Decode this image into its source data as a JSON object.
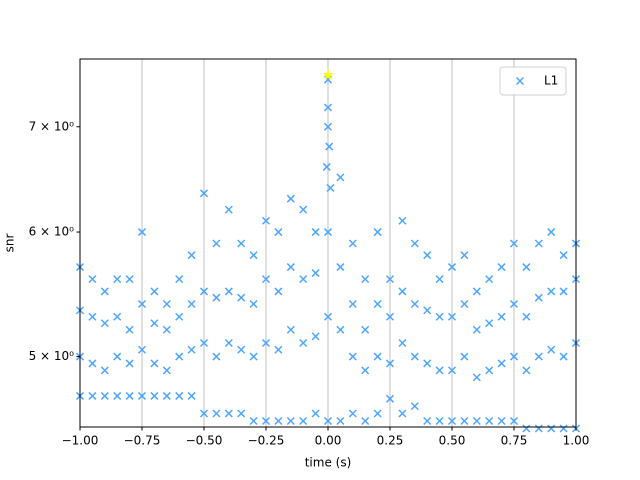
{
  "chart_data": {
    "type": "scatter",
    "xlabel": "time (s)",
    "ylabel": "snr",
    "xlim": [
      -1,
      1
    ],
    "ylim": [
      4.51,
      7.73
    ],
    "yscale": "log",
    "xticks": [
      {
        "value": -1,
        "label": "−1.00"
      },
      {
        "value": -0.75,
        "label": "−0.75"
      },
      {
        "value": -0.5,
        "label": "−0.50"
      },
      {
        "value": -0.25,
        "label": "−0.25"
      },
      {
        "value": 0,
        "label": "0.00"
      },
      {
        "value": 0.25,
        "label": "0.25"
      },
      {
        "value": 0.5,
        "label": "0.50"
      },
      {
        "value": 0.75,
        "label": "0.75"
      },
      {
        "value": 1,
        "label": "1.00"
      }
    ],
    "yticks": [
      {
        "value": 5,
        "label": "5 × 10⁰"
      },
      {
        "value": 6,
        "label": "6 × 10⁰"
      },
      {
        "value": 7,
        "label": "7 × 10⁰"
      }
    ],
    "xgrid": true,
    "legend": "upper right",
    "series": [
      {
        "name": "L1",
        "color": "#4da6ff",
        "x": [
          -1,
          -0.95,
          -0.9,
          -0.85,
          -0.8,
          -0.75,
          -0.7,
          -0.65,
          -0.6,
          -0.55,
          -0.5,
          -0.45,
          -0.4,
          -0.35,
          -0.3,
          -0.25,
          -0.2,
          -0.15,
          -0.1,
          -0.05,
          0,
          0.05,
          0.1,
          0.15,
          0.2,
          0.25,
          0.3,
          0.35,
          0.4,
          0.45,
          0.5,
          0.55,
          0.6,
          0.65,
          0.7,
          0.75,
          0.8,
          0.85,
          0.9,
          0.95,
          1,
          -1,
          -0.95,
          -0.9,
          -0.85,
          -0.8,
          -0.75,
          -0.7,
          -0.65,
          -0.6,
          -0.55,
          -0.5,
          -0.45,
          -0.4,
          -0.35,
          -0.3,
          -0.25,
          -0.2,
          -0.15,
          -0.1,
          -0.05,
          0,
          0.05,
          0.1,
          0.15,
          0.2,
          0.25,
          0.3,
          0.35,
          0.4,
          0.45,
          0.5,
          0.55,
          0.6,
          0.65,
          0.7,
          0.75,
          0.8,
          0.85,
          0.9,
          0.95,
          1,
          -1,
          -0.95,
          -0.9,
          -0.85,
          -0.8,
          -0.75,
          -0.7,
          -0.65,
          -0.6,
          -0.55,
          -0.5,
          -0.45,
          -0.4,
          -0.35,
          -0.3,
          -0.25,
          -0.2,
          -0.15,
          -0.1,
          -0.05,
          0,
          0.05,
          0.1,
          0.15,
          0.2,
          0.25,
          0.3,
          0.35,
          0.4,
          0.45,
          0.5,
          0.55,
          0.6,
          0.65,
          0.7,
          0.75,
          0.8,
          0.85,
          0.9,
          0.95,
          1,
          -1,
          -0.95,
          -0.9,
          -0.85,
          -0.8,
          -0.75,
          -0.7,
          -0.65,
          -0.6,
          -0.55,
          -0.5,
          -0.45,
          -0.4,
          -0.35,
          -0.3,
          -0.25,
          -0.2,
          -0.15,
          -0.1,
          -0.05,
          0,
          0.05,
          0.1,
          0.15,
          0.2,
          0.25,
          0.3,
          0.35,
          0.4,
          0.45,
          0.5,
          0.55,
          0.6,
          0.65,
          0.7,
          0.75,
          0.8,
          0.85,
          0.9,
          0.95,
          1,
          0,
          0,
          0.005,
          -0.005,
          0.01
        ],
        "values": [
          5.7,
          5.6,
          5.5,
          5.6,
          5.6,
          6.0,
          5.5,
          5.4,
          5.6,
          5.8,
          6.35,
          5.9,
          6.2,
          5.9,
          5.8,
          6.1,
          6.0,
          6.3,
          6.2,
          6.0,
          7.5,
          6.5,
          5.9,
          5.6,
          6.0,
          5.6,
          6.1,
          5.9,
          5.8,
          5.6,
          5.7,
          5.8,
          5.5,
          5.6,
          5.7,
          5.9,
          5.7,
          5.9,
          6.0,
          5.8,
          5.9,
          4.72,
          4.72,
          4.72,
          4.72,
          4.72,
          4.72,
          4.72,
          4.72,
          4.72,
          4.72,
          4.6,
          4.6,
          4.6,
          4.6,
          4.55,
          4.55,
          4.55,
          4.55,
          4.55,
          4.6,
          4.55,
          4.55,
          4.6,
          4.55,
          4.6,
          4.7,
          4.6,
          4.65,
          4.55,
          4.55,
          4.55,
          4.55,
          4.55,
          4.55,
          4.55,
          4.55,
          4.5,
          4.5,
          4.5,
          4.5,
          4.5,
          5.35,
          5.3,
          5.25,
          5.3,
          5.2,
          5.4,
          5.25,
          5.2,
          5.3,
          5.4,
          5.5,
          5.45,
          5.5,
          5.45,
          5.4,
          5.6,
          5.5,
          5.7,
          5.6,
          5.65,
          6.0,
          5.7,
          5.4,
          5.2,
          5.4,
          5.3,
          5.5,
          5.4,
          5.35,
          5.3,
          5.3,
          5.4,
          5.2,
          5.25,
          5.3,
          5.4,
          5.3,
          5.45,
          5.5,
          5.5,
          5.6,
          5.0,
          4.95,
          4.9,
          5.0,
          4.95,
          5.05,
          4.95,
          4.9,
          5.0,
          5.05,
          5.1,
          5.0,
          5.1,
          5.05,
          5.0,
          5.1,
          5.05,
          5.2,
          5.1,
          5.15,
          5.3,
          5.2,
          5.0,
          4.9,
          5.0,
          4.95,
          5.1,
          5.0,
          4.95,
          4.9,
          4.9,
          5.0,
          4.85,
          4.9,
          4.95,
          5.0,
          4.9,
          5.0,
          5.05,
          5.0,
          5.1,
          7.2,
          7.0,
          6.8,
          6.6,
          6.4
        ]
      }
    ],
    "highlight": {
      "x": 0,
      "y": 7.55,
      "color": "#ffff00"
    }
  }
}
